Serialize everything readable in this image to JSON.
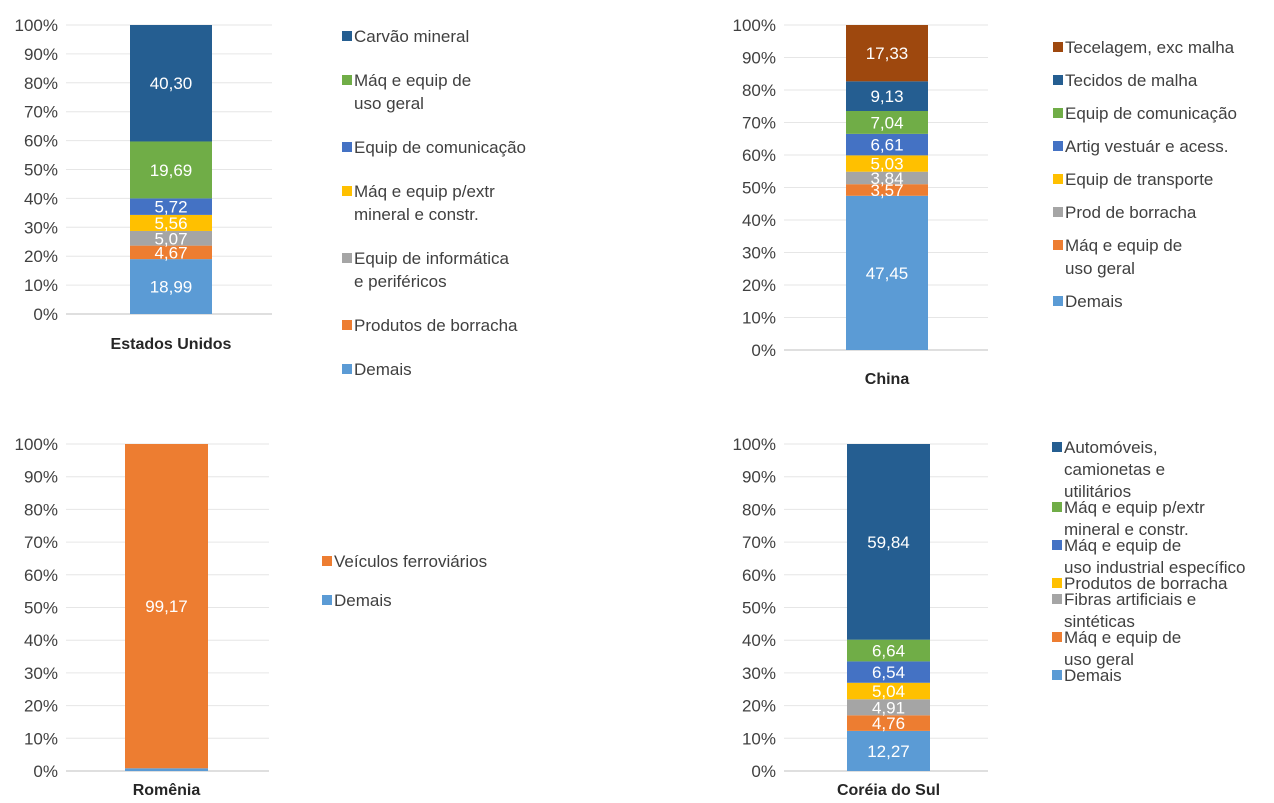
{
  "colors": {
    "Demais": "#5b9bd5",
    "orange": "#ed7d31",
    "gray": "#a5a5a5",
    "yellow": "#ffc000",
    "blue": "#4472c4",
    "green": "#70ad47",
    "navy": "#255e91",
    "brown": "#9e480e"
  },
  "chart_data": [
    {
      "type": "bar",
      "stacked": true,
      "categories": [
        "Estados Unidos"
      ],
      "ylim": [
        0,
        100
      ],
      "yticks": [
        "0%",
        "10%",
        "20%",
        "30%",
        "40%",
        "50%",
        "60%",
        "70%",
        "80%",
        "90%",
        "100%"
      ],
      "grid": true,
      "series": [
        {
          "name": "Demais",
          "values": [
            18.99
          ],
          "label": "18,99",
          "color": "#5b9bd5"
        },
        {
          "name": "Produtos de borracha",
          "values": [
            4.67
          ],
          "label": "4,67",
          "color": "#ed7d31"
        },
        {
          "name": "Equip de informática e periféricos",
          "values": [
            5.07
          ],
          "label": "5,07",
          "color": "#a5a5a5"
        },
        {
          "name": "Máq e equip p/extr mineral e constr.",
          "values": [
            5.56
          ],
          "label": "5,56",
          "color": "#ffc000"
        },
        {
          "name": "Equip de comunicação",
          "values": [
            5.72
          ],
          "label": "5,72",
          "color": "#4472c4"
        },
        {
          "name": "Máq e equip de uso geral",
          "values": [
            19.69
          ],
          "label": "19,69",
          "color": "#70ad47"
        },
        {
          "name": "Carvão mineral",
          "values": [
            40.3
          ],
          "label": "40,30",
          "color": "#255e91"
        }
      ],
      "legend": [
        {
          "lines": [
            "Carvão mineral"
          ],
          "color": "#255e91"
        },
        {
          "lines": [
            "Máq e equip de",
            "uso geral"
          ],
          "color": "#70ad47"
        },
        {
          "lines": [
            "Equip de comunicação"
          ],
          "color": "#4472c4"
        },
        {
          "lines": [
            "Máq e equip p/extr",
            "mineral e constr."
          ],
          "color": "#ffc000"
        },
        {
          "lines": [
            "Equip de informática",
            "e periféricos"
          ],
          "color": "#a5a5a5"
        },
        {
          "lines": [
            "Produtos de borracha"
          ],
          "color": "#ed7d31"
        },
        {
          "lines": [
            "Demais"
          ],
          "color": "#5b9bd5"
        }
      ]
    },
    {
      "type": "bar",
      "stacked": true,
      "categories": [
        "China"
      ],
      "ylim": [
        0,
        100
      ],
      "yticks": [
        "0%",
        "10%",
        "20%",
        "30%",
        "40%",
        "50%",
        "60%",
        "70%",
        "80%",
        "90%",
        "100%"
      ],
      "grid": true,
      "series": [
        {
          "name": "Demais",
          "values": [
            47.45
          ],
          "label": "47,45",
          "color": "#5b9bd5"
        },
        {
          "name": "Máq e equip de uso geral",
          "values": [
            3.57
          ],
          "label": "3,57",
          "color": "#ed7d31"
        },
        {
          "name": "Prod de borracha",
          "values": [
            3.84
          ],
          "label": "3,84",
          "color": "#a5a5a5"
        },
        {
          "name": "Equip de transporte",
          "values": [
            5.03
          ],
          "label": "5,03",
          "color": "#ffc000"
        },
        {
          "name": "Artig vestuár e acess.",
          "values": [
            6.61
          ],
          "label": "6,61",
          "color": "#4472c4"
        },
        {
          "name": "Equip de comunicação",
          "values": [
            7.04
          ],
          "label": "7,04",
          "color": "#70ad47"
        },
        {
          "name": "Tecidos de malha",
          "values": [
            9.13
          ],
          "label": "9,13",
          "color": "#255e91"
        },
        {
          "name": "Tecelagem, exc malha",
          "values": [
            17.33
          ],
          "label": "17,33",
          "color": "#9e480e"
        }
      ],
      "legend": [
        {
          "lines": [
            "Tecelagem, exc malha"
          ],
          "color": "#9e480e"
        },
        {
          "lines": [
            "Tecidos de malha"
          ],
          "color": "#255e91"
        },
        {
          "lines": [
            "Equip de comunicação"
          ],
          "color": "#70ad47"
        },
        {
          "lines": [
            "Artig vestuár e acess."
          ],
          "color": "#4472c4"
        },
        {
          "lines": [
            "Equip de transporte"
          ],
          "color": "#ffc000"
        },
        {
          "lines": [
            "Prod de borracha"
          ],
          "color": "#a5a5a5"
        },
        {
          "lines": [
            "Máq e equip de",
            "uso geral"
          ],
          "color": "#ed7d31"
        },
        {
          "lines": [
            "Demais"
          ],
          "color": "#5b9bd5"
        }
      ]
    },
    {
      "type": "bar",
      "stacked": true,
      "categories": [
        "Romênia"
      ],
      "ylim": [
        0,
        100
      ],
      "yticks": [
        "0%",
        "10%",
        "20%",
        "30%",
        "40%",
        "50%",
        "60%",
        "70%",
        "80%",
        "90%",
        "100%"
      ],
      "grid": true,
      "series": [
        {
          "name": "Demais",
          "values": [
            0.83
          ],
          "label": "",
          "color": "#5b9bd5"
        },
        {
          "name": "Veículos ferroviários",
          "values": [
            99.17
          ],
          "label": "99,17",
          "color": "#ed7d31"
        }
      ],
      "legend": [
        {
          "lines": [
            "Veículos ferroviários"
          ],
          "color": "#ed7d31"
        },
        {
          "lines": [
            "Demais"
          ],
          "color": "#5b9bd5"
        }
      ]
    },
    {
      "type": "bar",
      "stacked": true,
      "categories": [
        "Coréia do Sul"
      ],
      "ylim": [
        0,
        100
      ],
      "yticks": [
        "0%",
        "10%",
        "20%",
        "30%",
        "40%",
        "50%",
        "60%",
        "70%",
        "80%",
        "90%",
        "100%"
      ],
      "grid": true,
      "series": [
        {
          "name": "Demais",
          "values": [
            12.27
          ],
          "label": "12,27",
          "color": "#5b9bd5"
        },
        {
          "name": "Máq e equip de uso geral",
          "values": [
            4.76
          ],
          "label": "4,76",
          "color": "#ed7d31"
        },
        {
          "name": "Fibras artificiais e sintéticas",
          "values": [
            4.91
          ],
          "label": "4,91",
          "color": "#a5a5a5"
        },
        {
          "name": "Produtos de borracha",
          "values": [
            5.04
          ],
          "label": "5,04",
          "color": "#ffc000"
        },
        {
          "name": "Máq e equip de uso industrial específico",
          "values": [
            6.54
          ],
          "label": "6,54",
          "color": "#4472c4"
        },
        {
          "name": "Máq e equip p/extr mineral e constr.",
          "values": [
            6.64
          ],
          "label": "6,64",
          "color": "#70ad47"
        },
        {
          "name": "Automóveis, camionetas e utilitários",
          "values": [
            59.84
          ],
          "label": "59,84",
          "color": "#255e91"
        }
      ],
      "legend": [
        {
          "lines": [
            "Automóveis,",
            "camionetas e",
            "utilitários"
          ],
          "color": "#255e91"
        },
        {
          "lines": [
            "Máq e equip p/extr",
            "mineral e constr."
          ],
          "color": "#70ad47"
        },
        {
          "lines": [
            "Máq e equip de",
            "uso industrial específico"
          ],
          "color": "#4472c4"
        },
        {
          "lines": [
            "Produtos de borracha"
          ],
          "color": "#ffc000"
        },
        {
          "lines": [
            "Fibras artificiais e",
            "sintéticas"
          ],
          "color": "#a5a5a5"
        },
        {
          "lines": [
            "Máq e equip de",
            "uso geral"
          ],
          "color": "#ed7d31"
        },
        {
          "lines": [
            "Demais"
          ],
          "color": "#5b9bd5"
        }
      ]
    }
  ]
}
